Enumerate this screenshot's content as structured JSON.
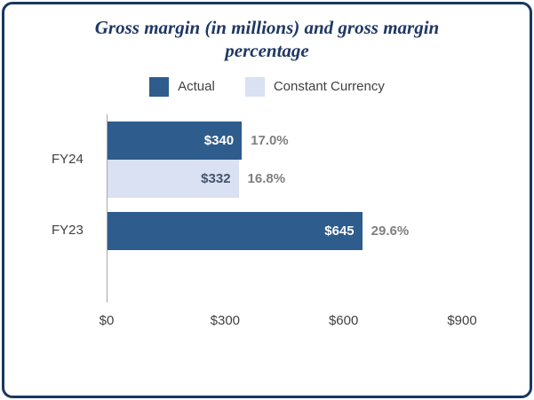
{
  "chart_data": {
    "type": "bar",
    "orientation": "horizontal",
    "title": "Gross margin (in millions) and gross margin percentage",
    "categories": [
      "FY24",
      "FY23"
    ],
    "series": [
      {
        "name": "Actual",
        "color": "#2E5C8C",
        "label_color": "#FFFFFF",
        "values": [
          340,
          645
        ]
      },
      {
        "name": "Constant Currency",
        "color": "#D9E1F2",
        "label_color": "#44546A",
        "values": [
          332,
          null
        ]
      }
    ],
    "bars": [
      {
        "category": "FY24",
        "series": "Actual",
        "value": 340,
        "value_label": "$340",
        "pct_label": "17.0%"
      },
      {
        "category": "FY24",
        "series": "Constant Currency",
        "value": 332,
        "value_label": "$332",
        "pct_label": "16.8%"
      },
      {
        "category": "FY23",
        "series": "Actual",
        "value": 645,
        "value_label": "$645",
        "pct_label": "29.6%"
      }
    ],
    "xlim": [
      0,
      900
    ],
    "x_ticks": [
      {
        "value": 0,
        "label": "$0"
      },
      {
        "value": 300,
        "label": "$300"
      },
      {
        "value": 600,
        "label": "$600"
      },
      {
        "value": 900,
        "label": "$900"
      }
    ],
    "legend_position": "top",
    "grid": false,
    "colors": {
      "pct_label": "#7F7F7F",
      "axis_line": "#A6A6A6",
      "frame_border": "#17375E",
      "title_text": "#1F3864",
      "axis_text": "#404040",
      "legend_text": "#404040"
    }
  }
}
